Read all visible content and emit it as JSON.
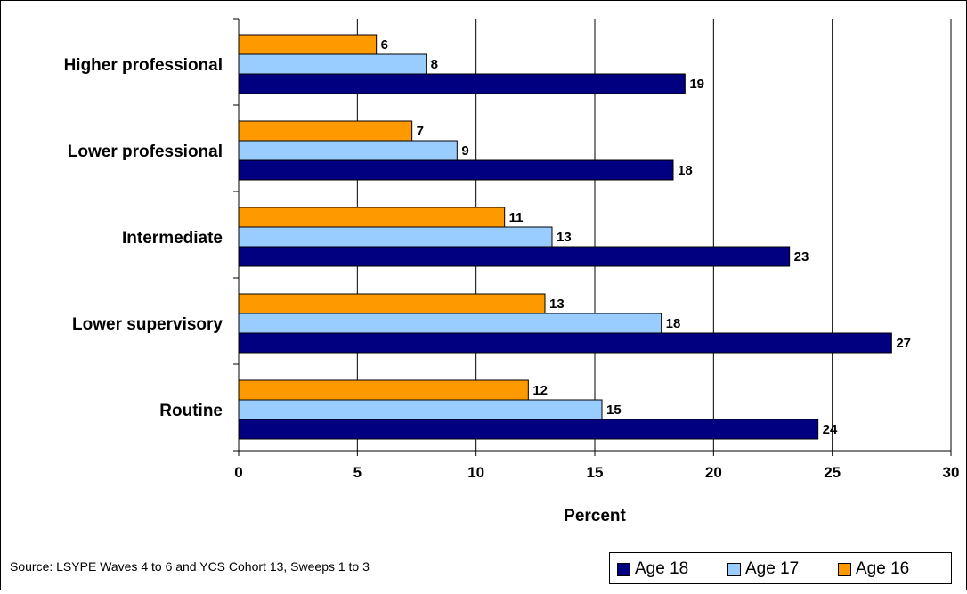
{
  "chart_data": {
    "type": "bar",
    "orientation": "horizontal",
    "categories": [
      "Higher professional",
      "Lower professional",
      "Intermediate",
      "Lower supervisory",
      "Routine"
    ],
    "series": [
      {
        "name": "Age 16",
        "color": "#FF9900",
        "values": [
          6,
          7,
          11,
          13,
          12
        ],
        "value_labels": [
          "6",
          "7",
          "11",
          "13",
          "12"
        ],
        "plotted_values": [
          5.8,
          7.3,
          11.2,
          12.9,
          12.2
        ]
      },
      {
        "name": "Age 17",
        "color": "#99CCFF",
        "values": [
          8,
          9,
          13,
          18,
          15
        ],
        "value_labels": [
          "8",
          "9",
          "13",
          "18",
          "15"
        ],
        "plotted_values": [
          7.9,
          9.2,
          13.2,
          17.8,
          15.3
        ]
      },
      {
        "name": "Age 18",
        "color": "#000080",
        "values": [
          19,
          18,
          23,
          27,
          24
        ],
        "value_labels": [
          "19",
          "18",
          "23",
          "27",
          "24"
        ],
        "plotted_values": [
          18.8,
          18.3,
          23.2,
          27.5,
          24.4
        ]
      }
    ],
    "xlabel": "Percent",
    "xlim": [
      0,
      30
    ],
    "xticks": [
      0,
      5,
      10,
      15,
      20,
      25,
      30
    ],
    "xtick_labels": [
      "0",
      "5",
      "10",
      "15",
      "20",
      "25",
      "30"
    ],
    "grid": "vertical",
    "legend": {
      "placement": "bottom-right",
      "entries": [
        "Age 18",
        "Age 17",
        "Age 16"
      ]
    },
    "source_note": "Source: LSYPE Waves 4 to 6 and YCS Cohort 13, Sweeps 1 to 3"
  }
}
